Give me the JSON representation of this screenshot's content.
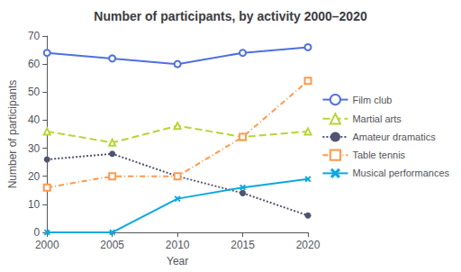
{
  "chart_data": {
    "type": "line",
    "title": "Number of participants, by activity 2000–2020",
    "xlabel": "Year",
    "ylabel": "Number of participants",
    "x": [
      2000,
      2005,
      2010,
      2015,
      2020
    ],
    "series": [
      {
        "name": "Film club",
        "values": [
          64,
          62,
          60,
          64,
          66
        ],
        "marker": "hollow_circle",
        "line_style": "solid"
      },
      {
        "name": "Martial arts",
        "values": [
          36,
          32,
          38,
          34,
          36
        ],
        "marker": "hollow_triangle",
        "line_style": "dashed"
      },
      {
        "name": "Amateur dramatics",
        "values": [
          26,
          28,
          20,
          14,
          6
        ],
        "marker": "circle",
        "line_style": "dotted"
      },
      {
        "name": "Table tennis",
        "values": [
          16,
          20,
          20,
          34,
          54
        ],
        "marker": "hollow_square",
        "line_style": "dashdot"
      },
      {
        "name": "Musical performances",
        "values": [
          0,
          0,
          12,
          16,
          19
        ],
        "marker": "x",
        "line_style": "solid"
      }
    ],
    "xlim": [
      2000,
      2020
    ],
    "xticks": [
      2000,
      2005,
      2010,
      2015,
      2020
    ],
    "ylim": [
      0,
      70
    ],
    "yticks": [
      0,
      10,
      20,
      30,
      40,
      50,
      60,
      70
    ],
    "grid": false,
    "legend": "right"
  }
}
